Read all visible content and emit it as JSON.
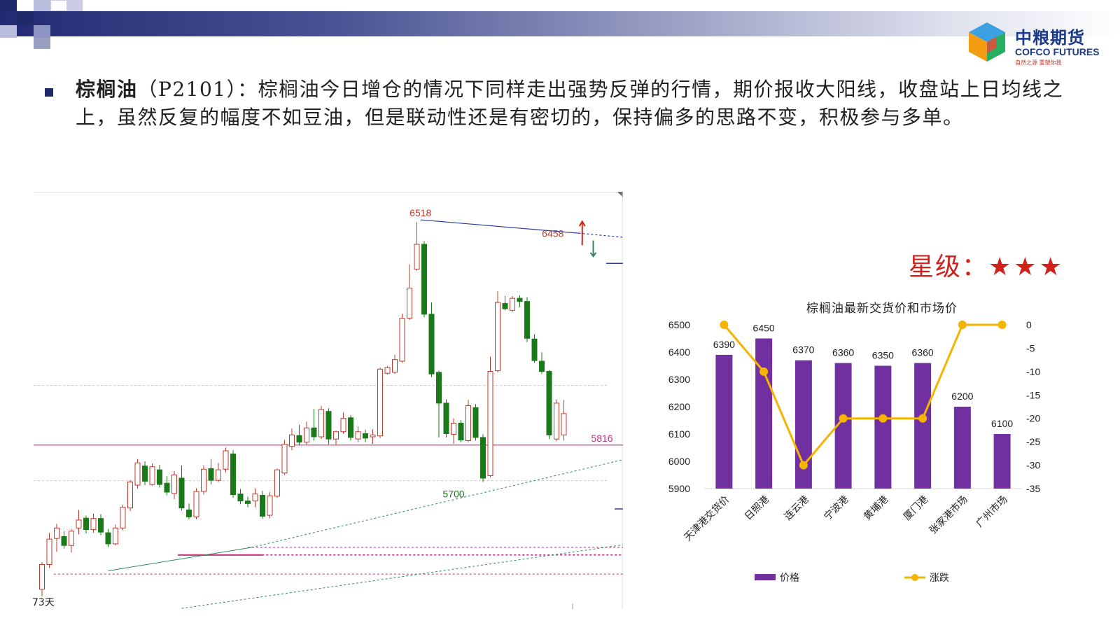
{
  "header": {
    "brand_cn": "中粮期货",
    "brand_en": "COFCO FUTURES",
    "motto": "自然之源 重塑你我",
    "banner_color": "#232a73",
    "logo_icon": "cofco-cube-logo-icon"
  },
  "commentary": {
    "headline": "棕榈油",
    "contract": "（P2101）：",
    "body": "棕榈油今日增仓的情况下同样走出强势反弹的行情，期价报收大阳线，收盘站上日均线之上，虽然反复的幅度不如豆油，但是联动性还是有密切的，保持偏多的思路不变，积极参与多单。"
  },
  "rating": {
    "label": "星级：",
    "stars": "★★★",
    "count": 3,
    "color": "#d0211a"
  },
  "chart_data": [
    {
      "type": "candlestick",
      "title": "",
      "period_label": "73天",
      "annotations": [
        {
          "text": "6518",
          "value": 6518,
          "kind": "high"
        },
        {
          "text": "6458",
          "value": 6458,
          "kind": "high"
        },
        {
          "text": "5700",
          "value": 5700,
          "kind": "low"
        },
        {
          "text": "5816",
          "value": 5816,
          "kind": "level"
        }
      ],
      "up_color": "#c0392b",
      "down_color": "#1a7a1a",
      "ylim": [
        5300,
        6600
      ],
      "candles": [
        [
          5362,
          5440,
          5340,
          5448
        ],
        [
          5440,
          5520,
          5430,
          5540
        ],
        [
          5522,
          5555,
          5480,
          5568
        ],
        [
          5528,
          5500,
          5490,
          5545
        ],
        [
          5500,
          5545,
          5478,
          5552
        ],
        [
          5555,
          5580,
          5535,
          5612
        ],
        [
          5586,
          5550,
          5538,
          5594
        ],
        [
          5550,
          5585,
          5540,
          5600
        ],
        [
          5585,
          5542,
          5532,
          5598
        ],
        [
          5540,
          5505,
          5495,
          5552
        ],
        [
          5505,
          5555,
          5500,
          5566
        ],
        [
          5555,
          5620,
          5548,
          5628
        ],
        [
          5618,
          5700,
          5608,
          5706
        ],
        [
          5690,
          5760,
          5680,
          5772
        ],
        [
          5750,
          5702,
          5690,
          5765
        ],
        [
          5692,
          5748,
          5688,
          5758
        ],
        [
          5738,
          5692,
          5682,
          5754
        ],
        [
          5696,
          5668,
          5658,
          5718
        ],
        [
          5664,
          5722,
          5645,
          5734
        ],
        [
          5712,
          5618,
          5610,
          5752
        ],
        [
          5612,
          5590,
          5582,
          5632
        ],
        [
          5590,
          5670,
          5582,
          5680
        ],
        [
          5670,
          5740,
          5660,
          5752
        ],
        [
          5742,
          5705,
          5692,
          5772
        ],
        [
          5705,
          5738,
          5700,
          5760
        ],
        [
          5740,
          5798,
          5730,
          5808
        ],
        [
          5788,
          5660,
          5650,
          5800
        ],
        [
          5662,
          5640,
          5630,
          5678
        ],
        [
          5640,
          5632,
          5620,
          5654
        ],
        [
          5640,
          5662,
          5620,
          5680
        ],
        [
          5658,
          5592,
          5585,
          5672
        ],
        [
          5595,
          5656,
          5585,
          5668
        ],
        [
          5655,
          5738,
          5650,
          5742
        ],
        [
          5728,
          5818,
          5722,
          5832
        ],
        [
          5812,
          5848,
          5800,
          5868
        ],
        [
          5846,
          5825,
          5815,
          5880
        ],
        [
          5825,
          5870,
          5818,
          5890
        ],
        [
          5870,
          5842,
          5830,
          5930
        ],
        [
          5842,
          5928,
          5835,
          5940
        ],
        [
          5922,
          5835,
          5818,
          5932
        ],
        [
          5835,
          5858,
          5815,
          5862
        ],
        [
          5858,
          5900,
          5852,
          5918
        ],
        [
          5902,
          5840,
          5830,
          5910
        ],
        [
          5835,
          5858,
          5825,
          5875
        ],
        [
          5852,
          5838,
          5825,
          5865
        ],
        [
          5842,
          5848,
          5820,
          5866
        ],
        [
          5845,
          6055,
          5838,
          6060
        ],
        [
          6042,
          6060,
          6038,
          6065
        ],
        [
          6045,
          6085,
          6040,
          6100
        ],
        [
          6080,
          6215,
          6075,
          6230
        ],
        [
          6215,
          6310,
          6210,
          6385
        ],
        [
          6370,
          6448,
          6365,
          6518
        ],
        [
          6448,
          6228,
          6218,
          6458
        ],
        [
          6228,
          6040,
          6030,
          6265
        ],
        [
          6045,
          5948,
          5840,
          6050
        ],
        [
          5948,
          5852,
          5840,
          5960
        ],
        [
          5850,
          5885,
          5820,
          5900
        ],
        [
          5885,
          5832,
          5825,
          5895
        ],
        [
          5830,
          5940,
          5825,
          5958
        ],
        [
          5934,
          5840,
          5830,
          5945
        ],
        [
          5840,
          5712,
          5700,
          5850
        ],
        [
          5720,
          6048,
          5715,
          6095
        ],
        [
          6050,
          6265,
          6045,
          6300
        ],
        [
          6262,
          6245,
          6240,
          6285
        ],
        [
          6240,
          6278,
          6235,
          6285
        ],
        [
          6278,
          6268,
          6250,
          6288
        ],
        [
          6268,
          6152,
          6140,
          6282
        ],
        [
          6150,
          6082,
          6075,
          6165
        ],
        [
          6080,
          6048,
          6040,
          6108
        ],
        [
          6048,
          5848,
          5835,
          6052
        ],
        [
          5835,
          5948,
          5828,
          5960
        ],
        [
          5848,
          5915,
          5830,
          5958
        ]
      ],
      "levels": [
        {
          "value": 5816,
          "label": "5816"
        }
      ]
    },
    {
      "type": "bar+line",
      "title": "棕榈油最新交货价和市场价",
      "categories": [
        "天津港交货价",
        "日照港",
        "连云港",
        "宁波港",
        "黄埔港",
        "厦门港",
        "张家港市场",
        "广州市场"
      ],
      "series": [
        {
          "name": "价格",
          "type": "bar",
          "axis": "left",
          "color": "#7030a0",
          "values": [
            6390,
            6450,
            6370,
            6360,
            6350,
            6360,
            6200,
            6100
          ]
        },
        {
          "name": "涨跌",
          "type": "line",
          "axis": "right",
          "color": "#f5b400",
          "values": [
            0,
            -10,
            -30,
            -20,
            -20,
            -20,
            0,
            0
          ]
        }
      ],
      "ylim_left": [
        5900,
        6500
      ],
      "yticks_left": [
        5900,
        6000,
        6100,
        6200,
        6300,
        6400,
        6500
      ],
      "ylim_right": [
        -35,
        0
      ],
      "yticks_right": [
        "0",
        "-5",
        "-10",
        "-15",
        "-20",
        "-25",
        "-30",
        "-35"
      ],
      "legend_position": "bottom"
    }
  ]
}
